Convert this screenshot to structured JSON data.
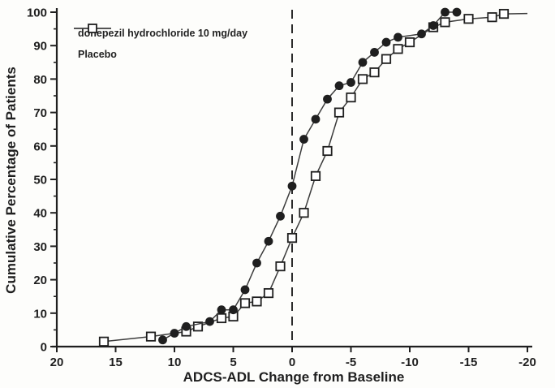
{
  "figure": {
    "background": "#fdfdfb",
    "ink": "#1f1f1f",
    "line_color": "#3c3c3c"
  },
  "chart_data": {
    "type": "line",
    "title": "",
    "xlabel": "ADCS-ADL Change from Baseline",
    "ylabel": "Cumulative Percentage of Patients",
    "xlim": [
      20,
      -20
    ],
    "ylim": [
      0,
      100
    ],
    "x_ticks": [
      20,
      15,
      10,
      5,
      0,
      -5,
      -10,
      -15,
      -20
    ],
    "y_ticks": [
      0,
      10,
      20,
      30,
      40,
      50,
      60,
      70,
      80,
      90,
      100
    ],
    "y_minor_tick_step": 5,
    "grid": false,
    "legend_position": "top-left",
    "reference_line": {
      "x": 0,
      "style": "dashed",
      "color": "#2b2b2b"
    },
    "series": [
      {
        "name": "donepezil hydrochloride 10 mg/day",
        "marker": "filled-circle",
        "color": "#1f1f1f",
        "points": [
          [
            11,
            2
          ],
          [
            10,
            4
          ],
          [
            9,
            6
          ],
          [
            7,
            7.5
          ],
          [
            6,
            11
          ],
          [
            5,
            11
          ],
          [
            4,
            17
          ],
          [
            3,
            25
          ],
          [
            2,
            31.5
          ],
          [
            1,
            39
          ],
          [
            0,
            48
          ],
          [
            -1,
            62
          ],
          [
            -2,
            68
          ],
          [
            -3,
            74
          ],
          [
            -4,
            78
          ],
          [
            -5,
            79
          ],
          [
            -6,
            85
          ],
          [
            -7,
            88
          ],
          [
            -8,
            91
          ],
          [
            -9,
            92.5
          ],
          [
            -11,
            93.5
          ],
          [
            -12,
            96
          ],
          [
            -13,
            100
          ],
          [
            -14,
            100
          ]
        ]
      },
      {
        "name": "Placebo",
        "marker": "open-square",
        "color": "#1f1f1f",
        "points": [
          [
            16,
            1.5
          ],
          [
            12,
            3
          ],
          [
            9,
            4.5
          ],
          [
            8,
            6
          ],
          [
            6,
            8.5
          ],
          [
            5,
            9
          ],
          [
            4,
            13
          ],
          [
            3,
            13.5
          ],
          [
            2,
            16
          ],
          [
            1,
            24
          ],
          [
            0,
            32.5
          ],
          [
            -1,
            40
          ],
          [
            -2,
            51
          ],
          [
            -3,
            58.5
          ],
          [
            -4,
            70
          ],
          [
            -5,
            74.5
          ],
          [
            -6,
            80
          ],
          [
            -7,
            82
          ],
          [
            -8,
            86
          ],
          [
            -9,
            89
          ],
          [
            -10,
            91
          ],
          [
            -12,
            95.5
          ],
          [
            -13,
            97
          ],
          [
            -15,
            98
          ],
          [
            -17,
            98.5
          ],
          [
            -18,
            99.5
          ]
        ],
        "tail_to": [
          -20,
          99.6
        ]
      }
    ]
  }
}
